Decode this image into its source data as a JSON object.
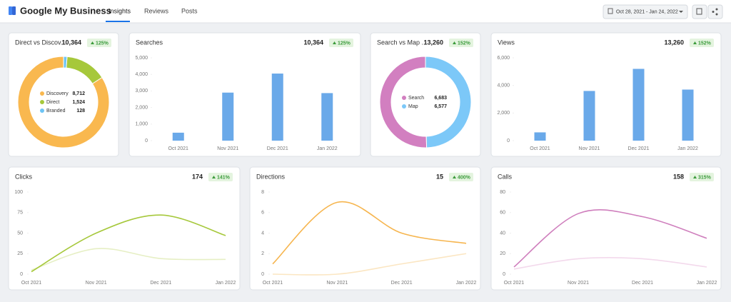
{
  "header": {
    "title": "Google My Business",
    "tabs": [
      "Insights",
      "Reviews",
      "Posts"
    ],
    "date_range": "Oct 28, 2021 - Jan 24, 2022"
  },
  "chart_data": [
    {
      "type": "donut",
      "title": "Direct vs Discov...",
      "total": {
        "value": 10364,
        "label": "10,364"
      },
      "change": {
        "value": 125,
        "label": "125%"
      },
      "categories": [
        "Discovery",
        "Direct",
        "Branded"
      ],
      "values": [
        8712,
        1524,
        128
      ],
      "value_labels": [
        "8,712",
        "1,524",
        "128"
      ],
      "colors": [
        "#f9b84f",
        "#a6c83b",
        "#6dc4f5"
      ]
    },
    {
      "type": "bar",
      "title": "Searches",
      "total": {
        "value": 10364,
        "label": "10,364"
      },
      "change": {
        "value": 125,
        "label": "125%"
      },
      "categories": [
        "Oct 2021",
        "Nov 2021",
        "Dec 2021",
        "Jan 2022"
      ],
      "values": [
        480,
        2900,
        4050,
        2870
      ],
      "color": "#6aa9e9",
      "ylim": [
        0,
        5000
      ],
      "yticks": [
        0,
        {
          "value": 1000,
          "label": "1,000"
        },
        {
          "value": 2000,
          "label": "2,000"
        },
        {
          "value": 3000,
          "label": "3,000"
        },
        {
          "value": 4000,
          "label": "4,000"
        },
        {
          "value": 5000,
          "label": "5,000"
        }
      ]
    },
    {
      "type": "donut",
      "title": "Search vs Map ...",
      "total": {
        "value": 13260,
        "label": "13,260"
      },
      "change": {
        "value": 152,
        "label": "152%"
      },
      "categories": [
        "Search",
        "Map"
      ],
      "values": [
        6683,
        6577
      ],
      "value_labels": [
        "6,683",
        "6,577"
      ],
      "colors": [
        "#d27fc0",
        "#7cc8f8"
      ]
    },
    {
      "type": "bar",
      "title": "Views",
      "total": {
        "value": 13260,
        "label": "13,260"
      },
      "change": {
        "value": 152,
        "label": "152%"
      },
      "categories": [
        "Oct 2021",
        "Nov 2021",
        "Dec 2021",
        "Jan 2022"
      ],
      "values": [
        600,
        3600,
        5200,
        3700
      ],
      "color": "#6aa9e9",
      "ylim": [
        0,
        6000
      ],
      "yticks": [
        0,
        {
          "value": 2000,
          "label": "2,000"
        },
        {
          "value": 4000,
          "label": "4,000"
        },
        {
          "value": 6000,
          "label": "6,000"
        }
      ]
    },
    {
      "type": "line",
      "title": "Clicks",
      "total": 174,
      "change": {
        "value": 141,
        "label": "141%"
      },
      "categories": [
        "Oct 2021",
        "Nov 2021",
        "Dec 2021",
        "Jan 2022"
      ],
      "series": [
        {
          "color": "#a6c83b",
          "values": [
            3,
            50,
            72,
            47
          ]
        },
        {
          "color": "#e6efc4",
          "values": [
            5,
            31,
            19,
            18
          ]
        }
      ],
      "ylim": [
        0,
        100
      ],
      "yticks": [
        0,
        25,
        50,
        75,
        100
      ]
    },
    {
      "type": "line",
      "title": "Directions",
      "total": 15,
      "change": {
        "value": 400,
        "label": "400%"
      },
      "categories": [
        "Oct 2021",
        "Nov 2021",
        "Dec 2021",
        "Jan 2022"
      ],
      "series": [
        {
          "color": "#f6b54e",
          "values": [
            1,
            7,
            4,
            3
          ]
        },
        {
          "color": "#fbe6c2",
          "values": [
            0,
            0,
            1,
            2
          ]
        }
      ],
      "ylim": [
        0,
        8
      ],
      "yticks": [
        0,
        2,
        4,
        6,
        8
      ]
    },
    {
      "type": "line",
      "title": "Calls",
      "total": 158,
      "change": {
        "value": 315,
        "label": "315%"
      },
      "categories": [
        "Oct 2021",
        "Nov 2021",
        "Dec 2021",
        "Jan 2022"
      ],
      "series": [
        {
          "color": "#cf7fbd",
          "values": [
            7,
            59,
            56,
            35
          ]
        },
        {
          "color": "#f3d9ec",
          "values": [
            5,
            15,
            15,
            7
          ]
        }
      ],
      "ylim": [
        0,
        80
      ],
      "yticks": [
        0,
        20,
        40,
        60,
        80
      ]
    }
  ]
}
